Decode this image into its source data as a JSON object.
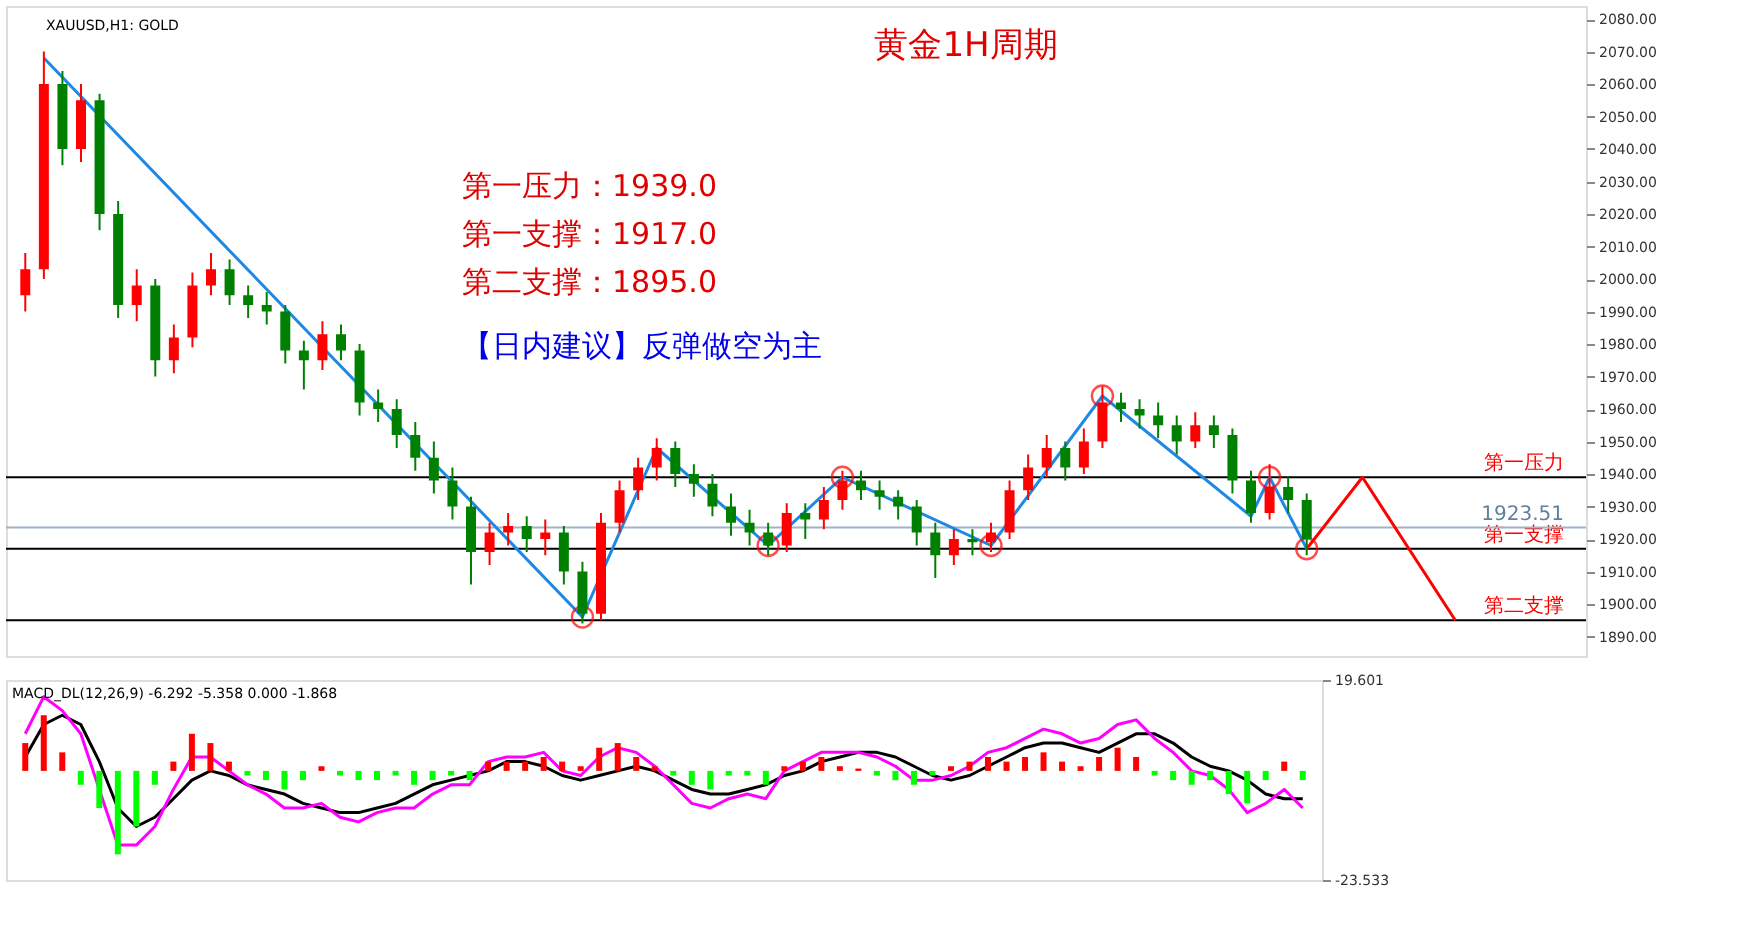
{
  "chart_data": [
    {
      "type": "candlestick",
      "title": "黄金1H周期",
      "subtitle": "XAUUSD,H1: GOLD",
      "categories": [
        null,
        null,
        null,
        null,
        null,
        null,
        null,
        null,
        null,
        null,
        null,
        null,
        null,
        null,
        null,
        null,
        null,
        null,
        null,
        null,
        null,
        null,
        null,
        null,
        null,
        null,
        null,
        null,
        null,
        null,
        null,
        null,
        null,
        null,
        null,
        null,
        null,
        null,
        null,
        null,
        null,
        null,
        null,
        null,
        null,
        null,
        null,
        null,
        null,
        null,
        null,
        null,
        null,
        null,
        null,
        null,
        null,
        null,
        null,
        null,
        null,
        null,
        null,
        null,
        null,
        null,
        null,
        null,
        null,
        null,
        null,
        null,
        null,
        null,
        null,
        null,
        null,
        null,
        null,
        null,
        null,
        null,
        null,
        null
      ],
      "ohlc": [
        [
          1995,
          2008,
          1990,
          2003
        ],
        [
          2003,
          2070,
          2000,
          2060
        ],
        [
          2060,
          2064,
          2035,
          2040
        ],
        [
          2040,
          2060,
          2036,
          2055
        ],
        [
          2055,
          2057,
          2015,
          2020
        ],
        [
          2020,
          2024,
          1988,
          1992
        ],
        [
          1992,
          2003,
          1987,
          1998
        ],
        [
          1998,
          2000,
          1970,
          1975
        ],
        [
          1975,
          1986,
          1971,
          1982
        ],
        [
          1982,
          2002,
          1979,
          1998
        ],
        [
          1998,
          2008,
          1995,
          2003
        ],
        [
          2003,
          2006,
          1992,
          1995
        ],
        [
          1995,
          1998,
          1988,
          1992
        ],
        [
          1992,
          1996,
          1986,
          1990
        ],
        [
          1990,
          1992,
          1974,
          1978
        ],
        [
          1978,
          1981,
          1966,
          1975
        ],
        [
          1975,
          1987,
          1972,
          1983
        ],
        [
          1983,
          1986,
          1975,
          1978
        ],
        [
          1978,
          1980,
          1958,
          1962
        ],
        [
          1962,
          1966,
          1956,
          1960
        ],
        [
          1960,
          1963,
          1948,
          1952
        ],
        [
          1952,
          1956,
          1941,
          1945
        ],
        [
          1945,
          1950,
          1934,
          1938
        ],
        [
          1938,
          1942,
          1926,
          1930
        ],
        [
          1930,
          1933,
          1906,
          1916
        ],
        [
          1916,
          1925,
          1912,
          1922
        ],
        [
          1922,
          1928,
          1918,
          1924
        ],
        [
          1924,
          1927,
          1916,
          1920
        ],
        [
          1920,
          1926,
          1915,
          1922
        ],
        [
          1922,
          1924,
          1906,
          1910
        ],
        [
          1910,
          1913,
          1894,
          1897
        ],
        [
          1897,
          1928,
          1895,
          1925
        ],
        [
          1925,
          1938,
          1922,
          1935
        ],
        [
          1935,
          1945,
          1932,
          1942
        ],
        [
          1942,
          1951,
          1938,
          1948
        ],
        [
          1948,
          1950,
          1936,
          1940
        ],
        [
          1940,
          1943,
          1933,
          1937
        ],
        [
          1937,
          1940,
          1927,
          1930
        ],
        [
          1930,
          1934,
          1921,
          1925
        ],
        [
          1925,
          1929,
          1918,
          1922
        ],
        [
          1922,
          1925,
          1915,
          1918
        ],
        [
          1918,
          1931,
          1916,
          1928
        ],
        [
          1928,
          1931,
          1920,
          1926
        ],
        [
          1926,
          1936,
          1923,
          1932
        ],
        [
          1932,
          1941,
          1929,
          1938
        ],
        [
          1938,
          1941,
          1932,
          1935
        ],
        [
          1935,
          1938,
          1929,
          1933
        ],
        [
          1933,
          1935,
          1926,
          1930
        ],
        [
          1930,
          1932,
          1918,
          1922
        ],
        [
          1922,
          1925,
          1908,
          1915
        ],
        [
          1915,
          1923,
          1912,
          1920
        ],
        [
          1920,
          1923,
          1915,
          1919
        ],
        [
          1919,
          1925,
          1916,
          1922
        ],
        [
          1922,
          1938,
          1920,
          1935
        ],
        [
          1935,
          1946,
          1932,
          1942
        ],
        [
          1942,
          1952,
          1939,
          1948
        ],
        [
          1948,
          1950,
          1938,
          1942
        ],
        [
          1942,
          1954,
          1940,
          1950
        ],
        [
          1950,
          1967,
          1948,
          1962
        ],
        [
          1962,
          1965,
          1956,
          1960
        ],
        [
          1960,
          1963,
          1954,
          1958
        ],
        [
          1958,
          1962,
          1951,
          1955
        ],
        [
          1955,
          1958,
          1946,
          1950
        ],
        [
          1950,
          1959,
          1948,
          1955
        ],
        [
          1955,
          1958,
          1948,
          1952
        ],
        [
          1952,
          1954,
          1934,
          1938
        ],
        [
          1938,
          1941,
          1925,
          1928
        ],
        [
          1928,
          1943,
          1926,
          1936
        ],
        [
          1936,
          1939,
          1928,
          1932
        ],
        [
          1932,
          1934,
          1915,
          1920
        ],
        null,
        null,
        null,
        null,
        null,
        null,
        null,
        null,
        null,
        null,
        null,
        null,
        null,
        null
      ],
      "colors": [
        "#ff0000",
        "#ff0000",
        "#008000",
        "#ff0000",
        "#008000",
        "#008000",
        "#ff0000",
        "#008000",
        "#ff0000",
        "#ff0000",
        "#ff0000",
        "#008000",
        "#008000",
        "#008000",
        "#008000",
        "#008000",
        "#ff0000",
        "#008000",
        "#008000",
        "#008000",
        "#008000",
        "#008000",
        "#008000",
        "#008000",
        "#008000",
        "#ff0000",
        "#ff0000",
        "#008000",
        "#ff0000",
        "#008000",
        "#008000",
        "#ff0000",
        "#ff0000",
        "#ff0000",
        "#ff0000",
        "#008000",
        "#008000",
        "#008000",
        "#008000",
        "#008000",
        "#008000",
        "#ff0000",
        "#008000",
        "#ff0000",
        "#ff0000",
        "#008000",
        "#008000",
        "#008000",
        "#008000",
        "#008000",
        "#ff0000",
        "#008000",
        "#ff0000",
        "#ff0000",
        "#ff0000",
        "#ff0000",
        "#008000",
        "#ff0000",
        "#ff0000",
        "#008000",
        "#008000",
        "#008000",
        "#008000",
        "#ff0000",
        "#008000",
        "#008000",
        "#008000",
        "#ff0000",
        "#008000",
        "#008000",
        null,
        null,
        null,
        null,
        null,
        null,
        null,
        null,
        null,
        null,
        null,
        null,
        null,
        null
      ],
      "series": [
        {
          "type": "line",
          "color": "#1e88e5",
          "values": [
            null,
            2068,
            null,
            null,
            null,
            null,
            null,
            null,
            null,
            null,
            null,
            null,
            null,
            null,
            null,
            null,
            null,
            null,
            null,
            null,
            null,
            null,
            null,
            null,
            null,
            null,
            null,
            null,
            null,
            null,
            1896,
            null,
            null,
            null,
            1948,
            null,
            null,
            null,
            null,
            null,
            1918,
            null,
            null,
            null,
            1939,
            null,
            null,
            null,
            null,
            null,
            null,
            null,
            1918,
            null,
            null,
            null,
            null,
            null,
            1964,
            null,
            null,
            null,
            null,
            null,
            null,
            null,
            1927,
            1939,
            null,
            1917,
            null,
            null,
            null,
            null,
            null,
            null,
            null,
            null,
            null,
            null,
            null,
            null,
            null,
            null
          ]
        },
        {
          "type": "line",
          "color": "#ff0000",
          "values": [
            null,
            null,
            null,
            null,
            null,
            null,
            null,
            null,
            null,
            null,
            null,
            null,
            null,
            null,
            null,
            null,
            null,
            null,
            null,
            null,
            null,
            null,
            null,
            null,
            null,
            null,
            null,
            null,
            null,
            null,
            null,
            null,
            null,
            null,
            null,
            null,
            null,
            null,
            null,
            null,
            null,
            null,
            null,
            null,
            null,
            null,
            null,
            null,
            null,
            null,
            null,
            null,
            null,
            null,
            null,
            null,
            null,
            null,
            null,
            null,
            null,
            null,
            null,
            null,
            null,
            null,
            null,
            null,
            null,
            1917,
            null,
            null,
            1939,
            null,
            null,
            null,
            null,
            1895,
            null,
            null,
            null,
            null,
            null,
            null
          ]
        },
        {
          "type": "scatter",
          "marker": "circle",
          "color": "#ff0000",
          "values": [
            null,
            null,
            null,
            null,
            null,
            null,
            null,
            null,
            null,
            null,
            null,
            null,
            null,
            null,
            null,
            null,
            null,
            null,
            null,
            null,
            null,
            null,
            null,
            null,
            null,
            null,
            null,
            null,
            null,
            null,
            1896,
            null,
            null,
            null,
            null,
            null,
            null,
            null,
            null,
            null,
            1918,
            null,
            null,
            null,
            1939,
            null,
            null,
            null,
            null,
            null,
            null,
            null,
            1918,
            null,
            null,
            null,
            null,
            null,
            1964,
            null,
            null,
            null,
            null,
            null,
            null,
            null,
            null,
            1939,
            null,
            1917,
            null,
            null,
            null,
            null,
            null,
            null,
            null,
            null,
            null,
            null,
            null,
            null,
            null,
            null
          ]
        }
      ],
      "ref_lines": [
        {
          "axis": "y",
          "value": 1939,
          "label": "第一压力",
          "color": "#000000"
        },
        {
          "axis": "y",
          "value": 1917,
          "label": "第一支撑",
          "color": "#000000"
        },
        {
          "axis": "y",
          "value": 1895,
          "label": "第二支撑",
          "color": "#000000"
        },
        {
          "axis": "y",
          "value": 1923.51,
          "label": "1923.51",
          "color": "#a0b4c8"
        }
      ],
      "annotations": [
        "第一压力：1939.0",
        "第一支撑：1917.0",
        "第二支撑：1895.0",
        "【日内建议】反弹做空为主"
      ],
      "ylim": [
        1884,
        2084
      ],
      "yticks": [
        {
          "value": 1890,
          "label": "1890.00"
        },
        {
          "value": 1900,
          "label": "1900.00"
        },
        {
          "value": 1910,
          "label": "1910.00"
        },
        {
          "value": 1920,
          "label": "1920.00"
        },
        {
          "value": 1930,
          "label": "1930.00"
        },
        {
          "value": 1940,
          "label": "1940.00"
        },
        {
          "value": 1950,
          "label": "1950.00"
        },
        {
          "value": 1960,
          "label": "1960.00"
        },
        {
          "value": 1970,
          "label": "1970.00"
        },
        {
          "value": 1980,
          "label": "1980.00"
        },
        {
          "value": 1990,
          "label": "1990.00"
        },
        {
          "value": 2000,
          "label": "2000.00"
        },
        {
          "value": 2010,
          "label": "2010.00"
        },
        {
          "value": 2020,
          "label": "2020.00"
        },
        {
          "value": 2030,
          "label": "2030.00"
        },
        {
          "value": 2040,
          "label": "2040.00"
        },
        {
          "value": 2050,
          "label": "2050.00"
        },
        {
          "value": 2060,
          "label": "2060.00"
        },
        {
          "value": 2070,
          "label": "2070.00"
        },
        {
          "value": 2080,
          "label": "2080.00"
        }
      ],
      "tick_labels": "y"
    },
    {
      "type": "bar",
      "title": "MACD_DL(12,26,9) -6.292 -5.358 0.000 -1.868",
      "categories": [
        null,
        null,
        null,
        null,
        null,
        null,
        null,
        null,
        null,
        null,
        null,
        null,
        null,
        null,
        null,
        null,
        null,
        null,
        null,
        null,
        null,
        null,
        null,
        null,
        null,
        null,
        null,
        null,
        null,
        null,
        null,
        null,
        null,
        null,
        null,
        null,
        null,
        null,
        null,
        null,
        null,
        null,
        null,
        null,
        null,
        null,
        null,
        null,
        null,
        null,
        null,
        null,
        null,
        null,
        null,
        null,
        null,
        null,
        null,
        null,
        null,
        null,
        null,
        null,
        null,
        null,
        null,
        null,
        null,
        null
      ],
      "values": [
        6,
        12,
        4,
        -3,
        -8,
        -18,
        -12,
        -3,
        2,
        8,
        6,
        2,
        -1,
        -2,
        -4,
        -2,
        1,
        -1,
        -2,
        -2,
        -1,
        -3,
        -2,
        -1,
        -2,
        2,
        2,
        2,
        3,
        2,
        1,
        5,
        6,
        3,
        1,
        -1,
        -3,
        -4,
        -1,
        -1,
        -3,
        1,
        2,
        3,
        1,
        0.5,
        -1,
        -2,
        -3,
        -1,
        1,
        2,
        3,
        2,
        3,
        4,
        2,
        1,
        3,
        5,
        3,
        -1,
        -2,
        -3,
        -2,
        -5,
        -7,
        -2,
        2,
        -2
      ],
      "colors": [
        "#ff0000",
        "#ff0000",
        "#ff0000",
        "#00ff00",
        "#00ff00",
        "#00ff00",
        "#00ff00",
        "#00ff00",
        "#ff0000",
        "#ff0000",
        "#ff0000",
        "#ff0000",
        "#00ff00",
        "#00ff00",
        "#00ff00",
        "#00ff00",
        "#ff0000",
        "#00ff00",
        "#00ff00",
        "#00ff00",
        "#00ff00",
        "#00ff00",
        "#00ff00",
        "#00ff00",
        "#00ff00",
        "#ff0000",
        "#ff0000",
        "#ff0000",
        "#ff0000",
        "#ff0000",
        "#ff0000",
        "#ff0000",
        "#ff0000",
        "#ff0000",
        "#ff0000",
        "#00ff00",
        "#00ff00",
        "#00ff00",
        "#00ff00",
        "#00ff00",
        "#00ff00",
        "#ff0000",
        "#ff0000",
        "#ff0000",
        "#ff0000",
        "#ff0000",
        "#00ff00",
        "#00ff00",
        "#00ff00",
        "#00ff00",
        "#ff0000",
        "#ff0000",
        "#ff0000",
        "#ff0000",
        "#ff0000",
        "#ff0000",
        "#ff0000",
        "#ff0000",
        "#ff0000",
        "#ff0000",
        "#ff0000",
        "#00ff00",
        "#00ff00",
        "#00ff00",
        "#00ff00",
        "#00ff00",
        "#00ff00",
        "#00ff00",
        "#ff0000",
        "#00ff00"
      ],
      "series": [
        {
          "type": "line",
          "color": "#000000",
          "values": [
            3,
            10,
            12,
            10,
            2,
            -8,
            -12,
            -10,
            -6,
            -2,
            0,
            -1,
            -3,
            -4,
            -5,
            -7,
            -8,
            -9,
            -9,
            -8,
            -7,
            -5,
            -3,
            -2,
            -1,
            0,
            2,
            2,
            1,
            -1,
            -2,
            -1,
            0,
            1,
            0,
            -2,
            -4,
            -5,
            -5,
            -4,
            -3,
            -1,
            0,
            2,
            3,
            4,
            4,
            3,
            1,
            -1,
            -2,
            -1,
            1,
            3,
            5,
            6,
            6,
            5,
            4,
            6,
            8,
            8,
            6,
            3,
            1,
            0,
            -2,
            -5,
            -6,
            -6
          ]
        },
        {
          "type": "line",
          "color": "#ff00ff",
          "values": [
            8,
            16,
            13,
            8,
            -4,
            -16,
            -16,
            -12,
            -4,
            3,
            3,
            0,
            -3,
            -5,
            -8,
            -8,
            -7,
            -10,
            -11,
            -9,
            -8,
            -8,
            -5,
            -3,
            -3,
            2,
            3,
            3,
            4,
            0,
            -1,
            3,
            5,
            4,
            1,
            -3,
            -7,
            -8,
            -6,
            -5,
            -6,
            0,
            2,
            4,
            4,
            4,
            3,
            1,
            -2,
            -2,
            -1,
            1,
            4,
            5,
            7,
            9,
            8,
            6,
            7,
            10,
            11,
            7,
            4,
            0,
            -1,
            -4,
            -9,
            -7,
            -4,
            -8
          ]
        }
      ],
      "ylim": [
        -23.533,
        19.601
      ],
      "yticks": [
        19.601,
        -23.533
      ],
      "tick_labels": "y"
    }
  ]
}
